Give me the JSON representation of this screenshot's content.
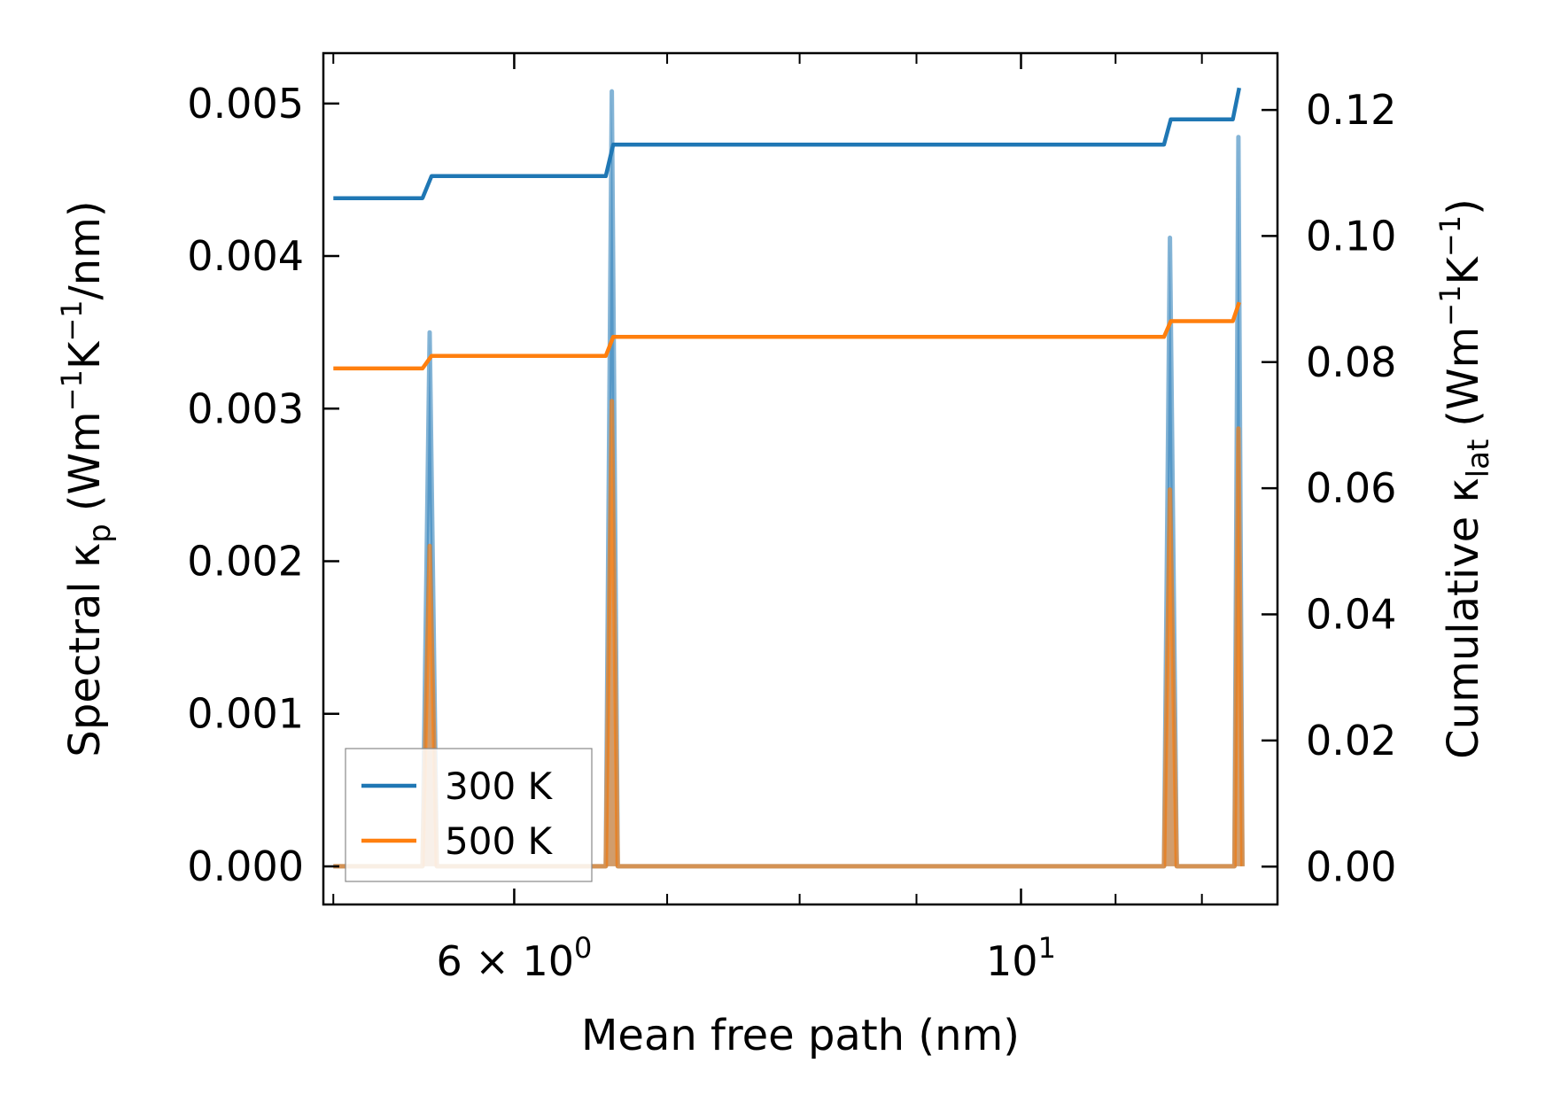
{
  "chart_data": {
    "type": "line",
    "xscale": "log",
    "xlim": [
      4.95,
      12.95
    ],
    "xlabel": "Mean free path (nm)",
    "x_tick_labels": [
      {
        "value": 6,
        "mantissa": "6",
        "times": "×",
        "base": "10",
        "exp": "0"
      },
      {
        "value": 10,
        "mantissa": "",
        "times": "",
        "base": "10",
        "exp": "1"
      }
    ],
    "x_minor_ticks": [
      5,
      6,
      7,
      8,
      9,
      10,
      11,
      12
    ],
    "left_axis": {
      "label_main": "Spectral κ",
      "label_sub": "p",
      "label_units": [
        "(Wm",
        "−1",
        "K",
        "−1",
        "/nm)"
      ],
      "ylim": [
        -0.00025,
        0.00533
      ],
      "ticks": [
        {
          "value": 0.0,
          "label": "0.000"
        },
        {
          "value": 0.001,
          "label": "0.001"
        },
        {
          "value": 0.002,
          "label": "0.002"
        },
        {
          "value": 0.003,
          "label": "0.003"
        },
        {
          "value": 0.004,
          "label": "0.004"
        },
        {
          "value": 0.005,
          "label": "0.005"
        }
      ]
    },
    "right_axis": {
      "label_main": "Cumulative κ",
      "label_sub": "lat",
      "label_units": [
        "(Wm",
        "−1",
        "K",
        "−1",
        ")"
      ],
      "ylim": [
        -0.006,
        0.129
      ],
      "ticks": [
        {
          "value": 0.0,
          "label": "0.00"
        },
        {
          "value": 0.02,
          "label": "0.02"
        },
        {
          "value": 0.04,
          "label": "0.04"
        },
        {
          "value": 0.06,
          "label": "0.06"
        },
        {
          "value": 0.08,
          "label": "0.08"
        },
        {
          "value": 0.1,
          "label": "0.10"
        },
        {
          "value": 0.12,
          "label": "0.12"
        }
      ]
    },
    "legend": {
      "placement": "lower-left",
      "entries": [
        {
          "label": "300 K",
          "color": "#1f77b4"
        },
        {
          "label": "500 K",
          "color": "#ff7f0e"
        }
      ]
    },
    "series": [
      {
        "name": "300 K",
        "color": "#1f77b4",
        "spectral": [
          {
            "x": 5.0,
            "y": 0.0
          },
          {
            "x": 5.47,
            "y": 0.0
          },
          {
            "x": 5.51,
            "y": 0.0035
          },
          {
            "x": 5.55,
            "y": 0.0
          },
          {
            "x": 6.58,
            "y": 0.0
          },
          {
            "x": 6.62,
            "y": 0.00508
          },
          {
            "x": 6.66,
            "y": 0.0
          },
          {
            "x": 11.55,
            "y": 0.0
          },
          {
            "x": 11.62,
            "y": 0.00412
          },
          {
            "x": 11.7,
            "y": 0.0
          },
          {
            "x": 12.4,
            "y": 0.0
          },
          {
            "x": 12.45,
            "y": 0.00478
          },
          {
            "x": 12.5,
            "y": 0.0
          }
        ],
        "cumulative": [
          {
            "x": 5.0,
            "y": 0.106
          },
          {
            "x": 5.47,
            "y": 0.106
          },
          {
            "x": 5.52,
            "y": 0.1095
          },
          {
            "x": 6.58,
            "y": 0.1095
          },
          {
            "x": 6.63,
            "y": 0.1145
          },
          {
            "x": 11.55,
            "y": 0.1145
          },
          {
            "x": 11.63,
            "y": 0.1185
          },
          {
            "x": 12.38,
            "y": 0.1185
          },
          {
            "x": 12.46,
            "y": 0.1235
          }
        ]
      },
      {
        "name": "500 K",
        "color": "#ff7f0e",
        "spectral": [
          {
            "x": 5.0,
            "y": 0.0
          },
          {
            "x": 5.47,
            "y": 0.0
          },
          {
            "x": 5.51,
            "y": 0.0021
          },
          {
            "x": 5.55,
            "y": 0.0
          },
          {
            "x": 6.58,
            "y": 0.0
          },
          {
            "x": 6.62,
            "y": 0.00305
          },
          {
            "x": 6.66,
            "y": 0.0
          },
          {
            "x": 11.55,
            "y": 0.0
          },
          {
            "x": 11.62,
            "y": 0.00247
          },
          {
            "x": 11.7,
            "y": 0.0
          },
          {
            "x": 12.4,
            "y": 0.0
          },
          {
            "x": 12.45,
            "y": 0.00287
          },
          {
            "x": 12.5,
            "y": 0.0
          }
        ],
        "cumulative": [
          {
            "x": 5.0,
            "y": 0.079
          },
          {
            "x": 5.47,
            "y": 0.079
          },
          {
            "x": 5.52,
            "y": 0.081
          },
          {
            "x": 6.58,
            "y": 0.081
          },
          {
            "x": 6.63,
            "y": 0.084
          },
          {
            "x": 11.55,
            "y": 0.084
          },
          {
            "x": 11.63,
            "y": 0.0865
          },
          {
            "x": 12.38,
            "y": 0.0865
          },
          {
            "x": 12.46,
            "y": 0.0895
          }
        ]
      }
    ]
  }
}
